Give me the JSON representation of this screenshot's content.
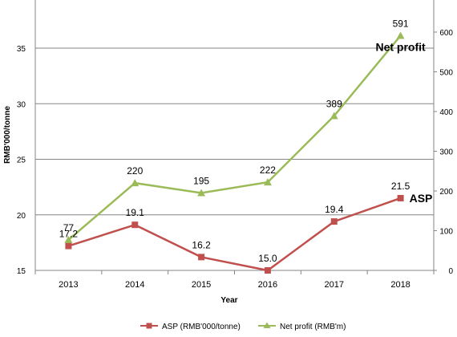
{
  "chart_data": {
    "type": "line",
    "categories": [
      "2013",
      "2014",
      "2015",
      "2016",
      "2017",
      "2018"
    ],
    "series": [
      {
        "name": "ASP (RMB'000/tonne)",
        "axis": "left",
        "color": "#c0504d",
        "marker": "square",
        "values": [
          17.2,
          19.1,
          16.2,
          15.0,
          19.4,
          21.5
        ],
        "labels": [
          "17.2",
          "19.1",
          "16.2",
          "15.0",
          "19.4",
          "21.5"
        ],
        "end_annotation": "ASP"
      },
      {
        "name": "Net profit (RMB'm)",
        "axis": "right",
        "color": "#9bbb59",
        "marker": "triangle",
        "values": [
          77,
          220,
          195,
          222,
          389,
          591
        ],
        "labels": [
          "77",
          "220",
          "195",
          "222",
          "389",
          "591"
        ],
        "end_annotation": "Net profit"
      }
    ],
    "xlabel": "Year",
    "ylabel": "RMB'000/tonne",
    "y2label": "",
    "ylim": [
      15,
      35
    ],
    "yticks": [
      "15",
      "20",
      "25",
      "30",
      "35"
    ],
    "y2lim": [
      0,
      600
    ],
    "y2ticks": [
      "0",
      "100",
      "200",
      "300",
      "400",
      "500",
      "600"
    ],
    "grid": true,
    "legend_position": "bottom"
  }
}
